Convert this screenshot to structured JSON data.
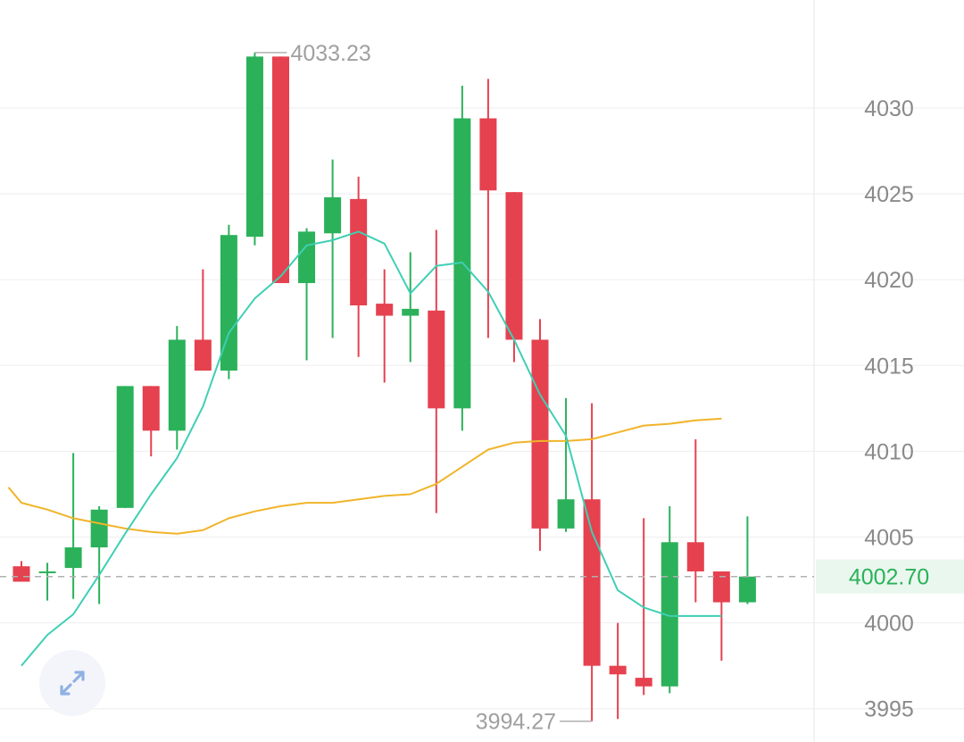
{
  "chart_data": {
    "type": "candlestick",
    "y_axis": {
      "range": [
        3992.6,
        4036.0
      ],
      "ticks": [
        3995,
        4000,
        4005,
        4010,
        4015,
        4020,
        4025,
        4030
      ],
      "position": "right"
    },
    "grid": true,
    "candles": [
      {
        "o": 4003.3,
        "h": 4003.6,
        "l": 4002.4,
        "c": 4002.4
      },
      {
        "o": 4003.0,
        "h": 4003.5,
        "l": 4001.3,
        "c": 4003.0
      },
      {
        "o": 4003.2,
        "h": 4009.9,
        "l": 4001.4,
        "c": 4004.4
      },
      {
        "o": 4004.4,
        "h": 4006.8,
        "l": 4001.1,
        "c": 4006.6
      },
      {
        "o": 4006.7,
        "h": 4013.8,
        "l": 4006.7,
        "c": 4013.8
      },
      {
        "o": 4013.8,
        "h": 4013.8,
        "l": 4009.7,
        "c": 4011.2
      },
      {
        "o": 4011.2,
        "h": 4017.3,
        "l": 4010.1,
        "c": 4016.5
      },
      {
        "o": 4016.5,
        "h": 4020.6,
        "l": 4014.7,
        "c": 4014.7
      },
      {
        "o": 4014.7,
        "h": 4023.2,
        "l": 4014.2,
        "c": 4022.6
      },
      {
        "o": 4022.5,
        "h": 4033.23,
        "l": 4022.0,
        "c": 4033.0
      },
      {
        "o": 4033.0,
        "h": 4033.0,
        "l": 4019.8,
        "c": 4019.8
      },
      {
        "o": 4019.8,
        "h": 4023.0,
        "l": 4015.3,
        "c": 4022.8
      },
      {
        "o": 4022.7,
        "h": 4027.0,
        "l": 4016.6,
        "c": 4024.8
      },
      {
        "o": 4024.7,
        "h": 4026.0,
        "l": 4015.5,
        "c": 4018.5
      },
      {
        "o": 4018.6,
        "h": 4020.6,
        "l": 4014.0,
        "c": 4017.9
      },
      {
        "o": 4017.9,
        "h": 4021.6,
        "l": 4015.2,
        "c": 4018.3
      },
      {
        "o": 4018.2,
        "h": 4022.9,
        "l": 4006.4,
        "c": 4012.5
      },
      {
        "o": 4012.5,
        "h": 4031.3,
        "l": 4011.2,
        "c": 4029.4
      },
      {
        "o": 4029.4,
        "h": 4031.7,
        "l": 4016.6,
        "c": 4025.2
      },
      {
        "o": 4025.1,
        "h": 4025.1,
        "l": 4015.2,
        "c": 4016.5
      },
      {
        "o": 4016.5,
        "h": 4017.7,
        "l": 4004.2,
        "c": 4005.5
      },
      {
        "o": 4005.5,
        "h": 4013.1,
        "l": 4005.3,
        "c": 4007.2
      },
      {
        "o": 4007.2,
        "h": 4012.8,
        "l": 3994.27,
        "c": 3997.5
      },
      {
        "o": 3997.5,
        "h": 4000.0,
        "l": 3994.4,
        "c": 3997.0
      },
      {
        "o": 3996.8,
        "h": 4006.1,
        "l": 3995.8,
        "c": 3996.3
      },
      {
        "o": 3996.3,
        "h": 4006.8,
        "l": 3995.9,
        "c": 4004.7
      },
      {
        "o": 4004.7,
        "h": 4010.7,
        "l": 4001.2,
        "c": 4003.0
      },
      {
        "o": 4003.0,
        "h": 4002.9,
        "l": 3997.8,
        "c": 4001.2
      },
      {
        "o": 4001.2,
        "h": 4006.2,
        "l": 4001.1,
        "c": 4002.7
      }
    ],
    "ma_fast": {
      "x": [
        0,
        1,
        2,
        3,
        4,
        5,
        6,
        7,
        8,
        9,
        10,
        11,
        12,
        13,
        14,
        15,
        16,
        17,
        18,
        19,
        20,
        21,
        22,
        23,
        24,
        25,
        26,
        27
      ],
      "y": [
        3997.5,
        3999.3,
        4000.5,
        4002.8,
        4005.2,
        4007.5,
        4009.6,
        4012.6,
        4016.9,
        4018.9,
        4020.2,
        4022.0,
        4022.3,
        4022.8,
        4022.1,
        4019.2,
        4020.8,
        4021.0,
        4019.3,
        4016.5,
        4013.3,
        4010.9,
        4005.3,
        4001.9,
        4000.9,
        4000.4,
        4000.4,
        4000.4
      ]
    },
    "ma_slow": {
      "x": [
        -0.5,
        0,
        1,
        2,
        3,
        4,
        5,
        6,
        7,
        8,
        9,
        10,
        11,
        12,
        13,
        14,
        15,
        16,
        17,
        18,
        19,
        20,
        21,
        22,
        23,
        24,
        25,
        26,
        27
      ],
      "y": [
        4007.9,
        4007.0,
        4006.6,
        4006.1,
        4005.8,
        4005.5,
        4005.3,
        4005.2,
        4005.4,
        4006.1,
        4006.5,
        4006.8,
        4007.0,
        4007.0,
        4007.2,
        4007.4,
        4007.5,
        4008.1,
        4009.1,
        4010.1,
        4010.5,
        4010.6,
        4010.6,
        4010.7,
        4011.1,
        4011.5,
        4011.6,
        4011.8,
        4011.9
      ]
    },
    "labels": {
      "high": "4033.23",
      "low": "3994.27",
      "last_price": "4002.70"
    },
    "last_price_value": 4002.7,
    "high_index": 9,
    "low_index": 22,
    "colors": {
      "up": "#2bb15a",
      "down": "#e5414f",
      "ma_fast": "#3ecfb4",
      "ma_slow": "#f0b429",
      "grid": "#eeeeee",
      "price_line": "#b0b0b0",
      "price_tag_bg": "#eaf7ee"
    }
  },
  "controls": {
    "expand_icon": "expand-arrows-icon"
  }
}
